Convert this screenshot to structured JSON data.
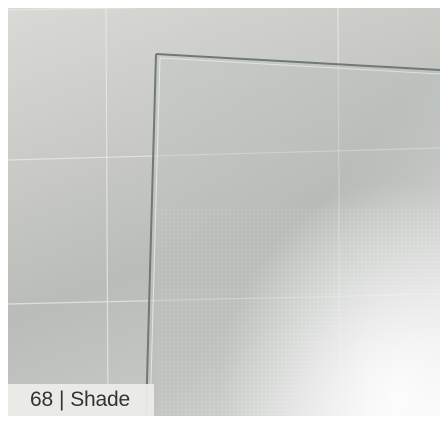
{
  "caption": {
    "number": "68",
    "separator": "|",
    "label": "Shade"
  },
  "colors": {
    "glass_edge": "#6f7a74",
    "tile_grout": "#e9e9e6",
    "caption_bg": "#ebebe8",
    "caption_text": "#333333"
  }
}
